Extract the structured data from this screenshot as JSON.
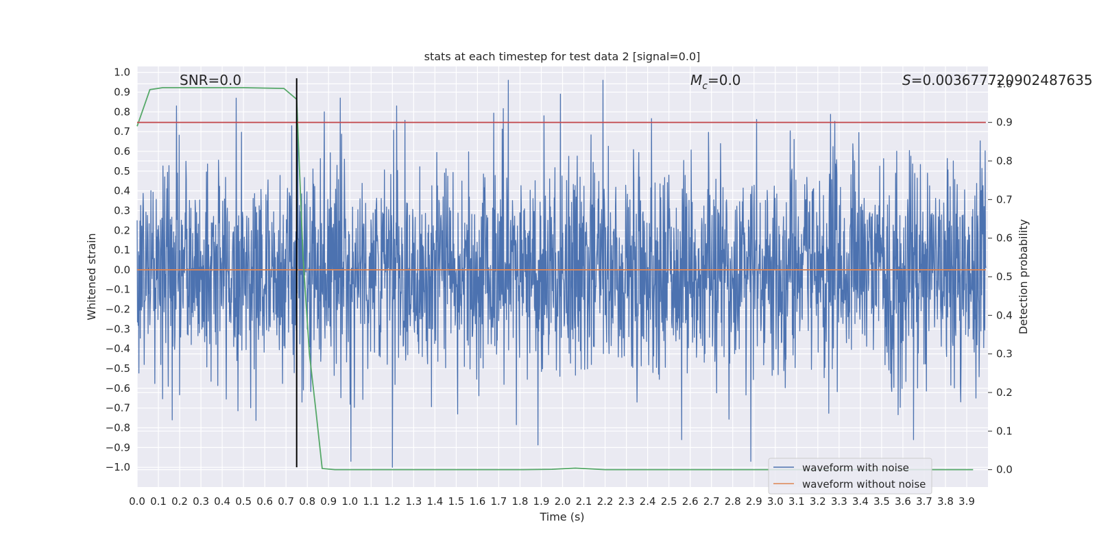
{
  "chart_data": {
    "type": "line",
    "title": "stats at each timestep for test data 2 [signal=0.0]",
    "xlabel": "Time (s)",
    "ylabel": "Whitened strain",
    "y2label": "Detection probability",
    "xlim": [
      0.0,
      4.0
    ],
    "ylim": [
      -1.1,
      1.03
    ],
    "y2lim": [
      -0.045,
      1.045
    ],
    "xticks": [
      "0.0",
      "0.1",
      "0.2",
      "0.3",
      "0.4",
      "0.5",
      "0.6",
      "0.7",
      "0.8",
      "0.9",
      "1.0",
      "1.1",
      "1.2",
      "1.3",
      "1.4",
      "1.5",
      "1.6",
      "1.7",
      "1.8",
      "1.9",
      "2.0",
      "2.1",
      "2.2",
      "2.3",
      "2.4",
      "2.5",
      "2.6",
      "2.7",
      "2.8",
      "2.9",
      "3.0",
      "3.1",
      "3.2",
      "3.3",
      "3.4",
      "3.5",
      "3.6",
      "3.7",
      "3.8",
      "3.9"
    ],
    "yticks": [
      "1.0",
      "0.9",
      "0.8",
      "0.7",
      "0.6",
      "0.5",
      "0.4",
      "0.3",
      "0.2",
      "0.1",
      "0.0",
      "−0.1",
      "−0.2",
      "−0.3",
      "−0.4",
      "−0.5",
      "−0.6",
      "−0.7",
      "−0.8",
      "−0.9",
      "−1.0"
    ],
    "y2ticks": [
      "1.0",
      "0.9",
      "0.8",
      "0.7",
      "0.6",
      "0.5",
      "0.4",
      "0.3",
      "0.2",
      "0.1",
      "0.0"
    ],
    "grid": true,
    "legend_position": "lower-right",
    "annotations": {
      "snr": "SNR=0.0",
      "mc_symbol": "M",
      "mc_sub": "c",
      "mc_value": "=0.0",
      "s_symbol": "S",
      "s_value": "=0.003677720902487635"
    },
    "series": [
      {
        "name": "waveform with noise",
        "color": "#4c72b0",
        "kind": "noise",
        "amplitude_envelope": [
          -1.0,
          0.96
        ],
        "notable_peaks": [
          {
            "x": 0.185,
            "y": 0.83
          },
          {
            "x": 0.755,
            "y": 0.71
          },
          {
            "x": 0.88,
            "y": 0.8
          },
          {
            "x": 0.955,
            "y": 0.87
          },
          {
            "x": 1.22,
            "y": 0.83
          },
          {
            "x": 1.745,
            "y": 0.96
          },
          {
            "x": 1.99,
            "y": 0.89
          },
          {
            "x": 2.19,
            "y": 0.96
          },
          {
            "x": 2.885,
            "y": 0.86
          },
          {
            "x": 0.165,
            "y": -0.76
          },
          {
            "x": 1.005,
            "y": -0.97
          },
          {
            "x": 1.2,
            "y": -1.0
          },
          {
            "x": 2.56,
            "y": -0.86
          },
          {
            "x": 2.885,
            "y": -0.97
          },
          {
            "x": 3.65,
            "y": -0.86
          }
        ]
      },
      {
        "name": "waveform without noise",
        "color": "#dd8452",
        "x": [
          0.0,
          3.99
        ],
        "y": [
          0.0,
          0.0
        ]
      },
      {
        "name": "",
        "axis": "right",
        "color": "#55a868",
        "x": [
          0.0,
          0.06,
          0.12,
          0.18,
          0.3,
          0.5,
          0.69,
          0.75,
          0.78,
          0.81,
          0.84,
          0.87,
          0.93,
          1.2,
          1.5,
          1.8,
          1.95,
          2.06,
          2.2,
          2.5,
          3.0,
          3.5,
          3.93
        ],
        "y": [
          0.89,
          0.985,
          0.99,
          0.99,
          0.99,
          0.99,
          0.988,
          0.96,
          0.55,
          0.3,
          0.155,
          0.003,
          0.0,
          0.0,
          0.0,
          0.0,
          0.001,
          0.004,
          0.0,
          0.0,
          0.0,
          0.0,
          0.0
        ]
      },
      {
        "name": "",
        "axis": "right",
        "color": "#c44e52",
        "x": [
          0.0,
          3.99
        ],
        "y": [
          0.9,
          0.9
        ]
      }
    ],
    "vertical_marker": {
      "x": 0.75,
      "color": "#000000",
      "y_from": -1.0,
      "y_to": 0.97
    }
  }
}
